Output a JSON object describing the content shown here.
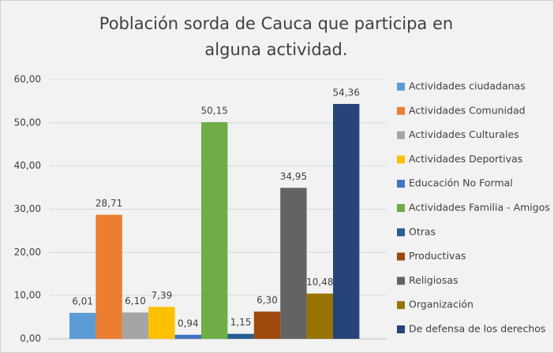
{
  "chart_data": {
    "type": "bar",
    "title": "Población sorda de Cauca que participa en alguna actividad.",
    "categories": [
      null
    ],
    "series": [
      {
        "name": "Actividades ciudadanas",
        "color": "#5b9bd5",
        "values": [
          6.01
        ],
        "value_labels": [
          "6,01"
        ]
      },
      {
        "name": "Actividades Comunidad",
        "color": "#ed7d31",
        "values": [
          28.71
        ],
        "value_labels": [
          "28,71"
        ]
      },
      {
        "name": "Actividades Culturales",
        "color": "#a5a5a5",
        "values": [
          6.1
        ],
        "value_labels": [
          "6,10"
        ]
      },
      {
        "name": "Actividades Deportivas",
        "color": "#ffc000",
        "values": [
          7.39
        ],
        "value_labels": [
          "7,39"
        ]
      },
      {
        "name": "Educación No Formal",
        "color": "#4472c4",
        "values": [
          0.94
        ],
        "value_labels": [
          "0,94"
        ]
      },
      {
        "name": "Actividades Familia - Amigos",
        "color": "#70ad47",
        "values": [
          50.15
        ],
        "value_labels": [
          "50,15"
        ]
      },
      {
        "name": "Otras",
        "color": "#255e91",
        "values": [
          1.15
        ],
        "value_labels": [
          "1,15"
        ]
      },
      {
        "name": "Productivas",
        "color": "#9e480e",
        "values": [
          6.3
        ],
        "value_labels": [
          "6,30"
        ]
      },
      {
        "name": "Religiosas",
        "color": "#636363",
        "values": [
          34.95
        ],
        "value_labels": [
          "34,95"
        ]
      },
      {
        "name": "Organización",
        "color": "#997300",
        "values": [
          10.48
        ],
        "value_labels": [
          "10,48"
        ]
      },
      {
        "name": "De defensa de los derechos",
        "color": "#264478",
        "values": [
          54.36
        ],
        "value_labels": [
          "54,36"
        ]
      }
    ],
    "ylim": [
      0,
      60
    ],
    "yticks": [
      {
        "value": 0,
        "label": "0,00"
      },
      {
        "value": 10,
        "label": "10,00"
      },
      {
        "value": 20,
        "label": "20,00"
      },
      {
        "value": 30,
        "label": "30,00"
      },
      {
        "value": 40,
        "label": "40,00"
      },
      {
        "value": 50,
        "label": "50,00"
      },
      {
        "value": 60,
        "label": "60,00"
      }
    ],
    "grid": true,
    "legend": "right"
  }
}
